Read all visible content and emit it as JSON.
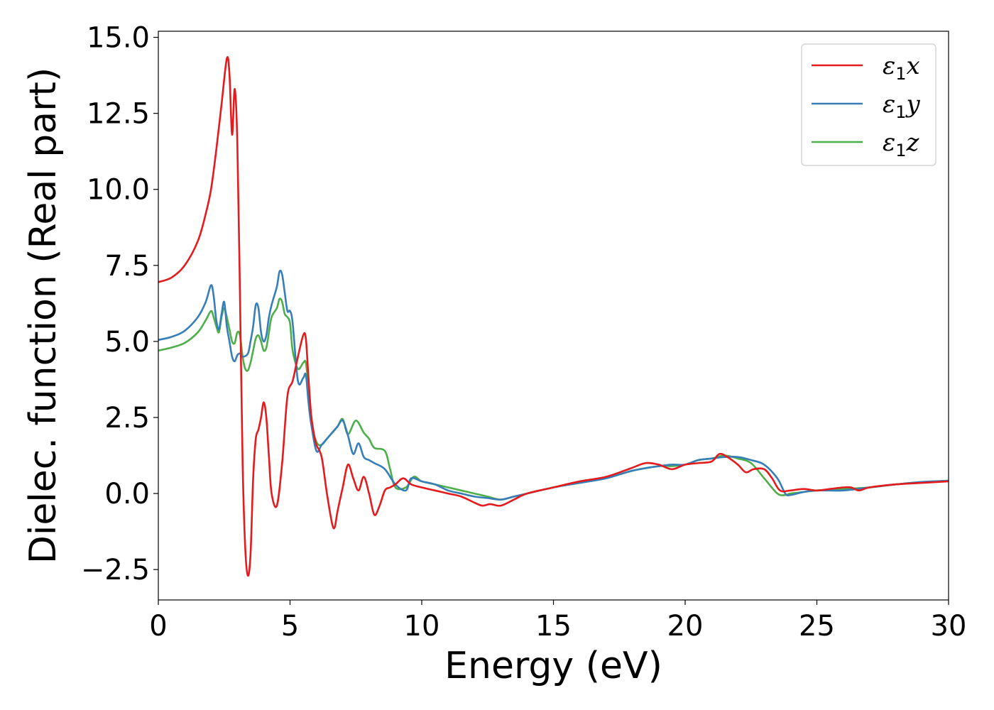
{
  "chart_data": {
    "type": "line",
    "title": "",
    "xlabel": "Energy (eV)",
    "ylabel": "Dielec. function (Real part)",
    "xlim": [
      0,
      30
    ],
    "ylim": [
      -3.5,
      15.2
    ],
    "xticks": [
      0,
      5,
      10,
      15,
      20,
      25,
      30
    ],
    "xtick_labels": [
      "0",
      "5",
      "10",
      "15",
      "20",
      "25",
      "30"
    ],
    "yticks": [
      -2.5,
      0.0,
      2.5,
      5.0,
      7.5,
      10.0,
      12.5,
      15.0
    ],
    "ytick_labels": [
      "−2.5",
      "0.0",
      "2.5",
      "5.0",
      "7.5",
      "10.0",
      "12.5",
      "15.0"
    ],
    "grid": false,
    "legend_position": "top-right",
    "series": [
      {
        "name": "ε1x",
        "legend_symbol": "ε",
        "legend_sub": "1",
        "legend_axis": "x",
        "color": "#e41a1c",
        "x": [
          0,
          0.5,
          1.0,
          1.5,
          1.8,
          2.0,
          2.2,
          2.4,
          2.6,
          2.7,
          2.8,
          2.9,
          3.0,
          3.1,
          3.2,
          3.3,
          3.4,
          3.5,
          3.6,
          3.7,
          3.8,
          3.9,
          4.0,
          4.1,
          4.2,
          4.3,
          4.5,
          4.7,
          4.9,
          5.1,
          5.3,
          5.5,
          5.6,
          5.7,
          5.8,
          5.9,
          6.0,
          6.2,
          6.4,
          6.6,
          6.7,
          6.8,
          7.0,
          7.2,
          7.4,
          7.6,
          7.8,
          8.0,
          8.2,
          8.4,
          8.6,
          8.8,
          9.0,
          9.3,
          9.6,
          10.0,
          10.5,
          11.0,
          11.5,
          12.0,
          12.3,
          12.6,
          13.0,
          13.5,
          14.0,
          15.0,
          16.0,
          17.0,
          18.0,
          18.5,
          19.0,
          19.5,
          20.0,
          20.5,
          21.0,
          21.3,
          21.6,
          22.0,
          22.3,
          22.6,
          23.0,
          23.3,
          23.6,
          24.0,
          24.5,
          25.0,
          25.5,
          26.0,
          26.3,
          26.6,
          27.0,
          28.0,
          29.0,
          30.0
        ],
        "y": [
          6.95,
          7.1,
          7.5,
          8.3,
          9.2,
          10.0,
          11.3,
          12.8,
          14.3,
          13.8,
          11.8,
          13.3,
          11.5,
          6.5,
          1.0,
          -1.8,
          -2.7,
          -2.0,
          0.5,
          1.8,
          2.1,
          2.5,
          3.0,
          2.5,
          1.2,
          0.0,
          -0.4,
          1.0,
          3.2,
          3.7,
          4.5,
          5.2,
          5.1,
          3.8,
          2.6,
          2.0,
          1.6,
          1.2,
          0.0,
          -1.0,
          -1.1,
          -0.6,
          0.2,
          0.95,
          0.5,
          0.1,
          0.55,
          0.0,
          -0.7,
          -0.4,
          0.1,
          0.2,
          0.3,
          0.5,
          0.3,
          0.2,
          0.1,
          0.0,
          -0.1,
          -0.3,
          -0.4,
          -0.35,
          -0.4,
          -0.2,
          0.0,
          0.2,
          0.4,
          0.55,
          0.85,
          1.0,
          0.95,
          0.8,
          0.95,
          1.0,
          1.05,
          1.3,
          1.2,
          0.95,
          0.7,
          0.8,
          0.8,
          0.5,
          0.1,
          0.1,
          0.15,
          0.1,
          0.15,
          0.2,
          0.2,
          0.1,
          0.2,
          0.3,
          0.35,
          0.4
        ]
      },
      {
        "name": "ε1y",
        "legend_symbol": "ε",
        "legend_sub": "1",
        "legend_axis": "y",
        "color": "#377eb8",
        "x": [
          0,
          0.5,
          1.0,
          1.5,
          1.8,
          2.0,
          2.1,
          2.2,
          2.3,
          2.4,
          2.5,
          2.6,
          2.7,
          2.8,
          2.9,
          3.0,
          3.1,
          3.2,
          3.4,
          3.5,
          3.6,
          3.7,
          3.8,
          3.9,
          4.0,
          4.1,
          4.2,
          4.3,
          4.5,
          4.6,
          4.7,
          4.8,
          4.9,
          5.0,
          5.1,
          5.3,
          5.5,
          5.6,
          5.7,
          5.8,
          6.0,
          6.2,
          6.4,
          6.6,
          6.8,
          7.0,
          7.2,
          7.4,
          7.6,
          7.8,
          8.0,
          8.2,
          8.6,
          9.0,
          9.4,
          9.6,
          10.0,
          10.5,
          11.0,
          11.5,
          12.0,
          12.5,
          13.0,
          13.5,
          14.0,
          15.0,
          16.0,
          17.0,
          18.0,
          19.0,
          19.5,
          20.0,
          20.5,
          21.0,
          21.5,
          22.0,
          22.5,
          23.0,
          23.5,
          23.8,
          24.0,
          24.5,
          25.0,
          26.0,
          27.0,
          28.0,
          29.0,
          30.0
        ],
        "y": [
          5.05,
          5.15,
          5.35,
          5.8,
          6.3,
          6.85,
          6.5,
          5.7,
          5.4,
          5.9,
          6.3,
          5.5,
          5.0,
          4.5,
          4.35,
          4.55,
          4.6,
          4.5,
          4.6,
          5.0,
          5.5,
          6.2,
          6.1,
          5.3,
          5.0,
          5.2,
          5.8,
          6.2,
          6.8,
          7.3,
          7.2,
          6.6,
          6.0,
          6.0,
          5.6,
          3.7,
          3.8,
          3.9,
          3.0,
          2.3,
          1.4,
          1.6,
          1.8,
          2.0,
          2.2,
          2.4,
          1.9,
          1.3,
          1.65,
          1.2,
          1.1,
          1.0,
          0.8,
          0.3,
          0.1,
          0.5,
          0.4,
          0.3,
          0.1,
          0.0,
          -0.1,
          -0.15,
          -0.2,
          -0.1,
          0.0,
          0.2,
          0.35,
          0.5,
          0.75,
          0.9,
          0.95,
          0.95,
          1.1,
          1.15,
          1.2,
          1.2,
          1.1,
          0.95,
          0.5,
          0.0,
          -0.05,
          0.05,
          0.1,
          0.1,
          0.2,
          0.3,
          0.38,
          0.42
        ]
      },
      {
        "name": "ε1z",
        "legend_symbol": "ε",
        "legend_sub": "1",
        "legend_axis": "z",
        "color": "#4daf4a",
        "x": [
          0,
          0.5,
          1.0,
          1.5,
          1.8,
          2.0,
          2.1,
          2.2,
          2.3,
          2.4,
          2.5,
          2.6,
          2.7,
          2.8,
          2.9,
          3.0,
          3.1,
          3.2,
          3.3,
          3.4,
          3.5,
          3.6,
          3.7,
          3.8,
          3.9,
          4.0,
          4.1,
          4.2,
          4.3,
          4.5,
          4.6,
          4.7,
          4.8,
          4.9,
          5.0,
          5.1,
          5.3,
          5.5,
          5.6,
          5.7,
          5.8,
          6.0,
          6.2,
          6.4,
          6.6,
          6.8,
          7.0,
          7.2,
          7.5,
          7.8,
          8.0,
          8.2,
          8.6,
          8.8,
          9.0,
          9.4,
          9.7,
          10.0,
          10.5,
          11.0,
          11.5,
          12.0,
          12.5,
          13.0,
          13.5,
          14.0,
          15.0,
          16.0,
          17.0,
          18.0,
          19.0,
          19.5,
          20.0,
          20.5,
          21.0,
          21.5,
          22.0,
          22.5,
          23.0,
          23.5,
          23.8,
          24.0,
          24.5,
          25.0,
          26.0,
          27.0,
          28.0,
          29.0,
          30.0
        ],
        "y": [
          4.7,
          4.8,
          4.95,
          5.3,
          5.7,
          6.0,
          5.8,
          5.5,
          5.3,
          5.8,
          6.1,
          5.8,
          5.4,
          5.0,
          4.95,
          5.3,
          5.2,
          4.5,
          4.1,
          4.05,
          4.3,
          4.7,
          5.1,
          5.2,
          5.0,
          4.7,
          4.8,
          5.3,
          5.8,
          6.1,
          6.4,
          6.3,
          5.9,
          5.8,
          5.6,
          4.7,
          4.1,
          4.3,
          4.3,
          3.5,
          2.4,
          1.7,
          1.6,
          1.8,
          2.0,
          2.2,
          2.45,
          1.95,
          2.4,
          2.0,
          1.8,
          1.5,
          1.4,
          0.8,
          0.2,
          0.2,
          0.55,
          0.4,
          0.3,
          0.2,
          0.1,
          0.0,
          -0.1,
          -0.2,
          -0.1,
          0.0,
          0.2,
          0.35,
          0.5,
          0.75,
          0.9,
          0.9,
          0.95,
          1.1,
          1.15,
          1.25,
          1.15,
          1.0,
          0.5,
          0.0,
          -0.05,
          0.0,
          0.05,
          0.1,
          0.15,
          0.2,
          0.3,
          0.38,
          0.42
        ]
      }
    ]
  }
}
